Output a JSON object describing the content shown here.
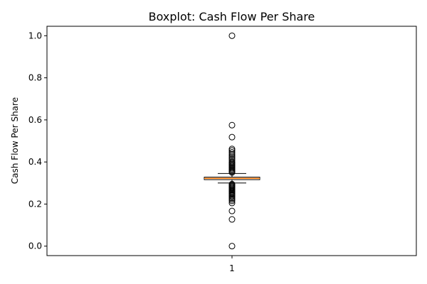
{
  "chart_data": {
    "type": "boxplot",
    "title": "Boxplot:  Cash Flow Per Share",
    "ylabel": "Cash Flow Per Share",
    "xlabel": "",
    "ylim": [
      -0.045,
      1.045
    ],
    "yticks": [
      "0.0",
      "0.2",
      "0.4",
      "0.6",
      "0.8",
      "1.0"
    ],
    "categories": [
      "1"
    ],
    "grid": false,
    "box": {
      "q1": 0.316,
      "median": 0.322,
      "q3": 0.328,
      "whisker_low": 0.3,
      "whisker_high": 0.345
    },
    "outliers": [
      0.0,
      0.127,
      0.167,
      0.205,
      0.215,
      0.222,
      0.228,
      0.235,
      0.241,
      0.246,
      0.251,
      0.256,
      0.261,
      0.266,
      0.27,
      0.275,
      0.279,
      0.283,
      0.287,
      0.291,
      0.295,
      0.35,
      0.355,
      0.36,
      0.365,
      0.37,
      0.375,
      0.38,
      0.385,
      0.39,
      0.395,
      0.4,
      0.408,
      0.415,
      0.422,
      0.43,
      0.438,
      0.446,
      0.455,
      0.462,
      0.518,
      0.575,
      1.0
    ],
    "colors": {
      "box": "#000000",
      "median": "#ff7f0e",
      "outlier_edge": "#000000"
    }
  }
}
